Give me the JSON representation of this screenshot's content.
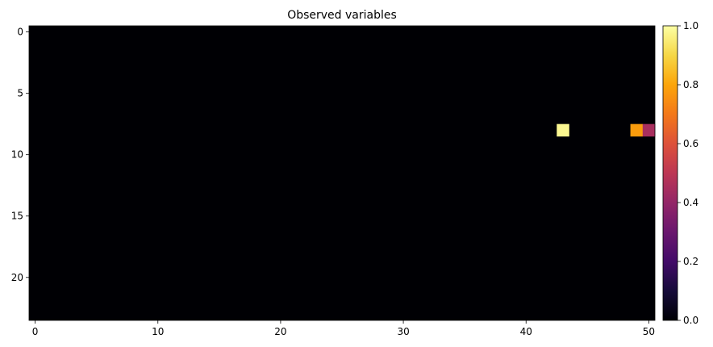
{
  "chart_data": {
    "type": "heatmap",
    "title": "Observed variables",
    "xlabel": "",
    "ylabel": "",
    "n_cols": 51,
    "n_rows": 24,
    "x_ticks": [
      0,
      10,
      20,
      30,
      40,
      50
    ],
    "y_ticks": [
      0,
      5,
      10,
      15,
      20
    ],
    "background_value": 0.0,
    "cells": [
      {
        "col": 43,
        "row": 8,
        "value": 0.98
      },
      {
        "col": 49,
        "row": 8,
        "value": 0.78
      },
      {
        "col": 50,
        "row": 8,
        "value": 0.45
      }
    ],
    "colormap": "inferno",
    "colorbar": {
      "range": [
        0.0,
        1.0
      ],
      "ticks": [
        0.0,
        0.2,
        0.4,
        0.6,
        0.8,
        1.0
      ],
      "tick_labels": [
        "0.0",
        "0.2",
        "0.4",
        "0.6",
        "0.8",
        "1.0"
      ]
    },
    "grid": false
  }
}
